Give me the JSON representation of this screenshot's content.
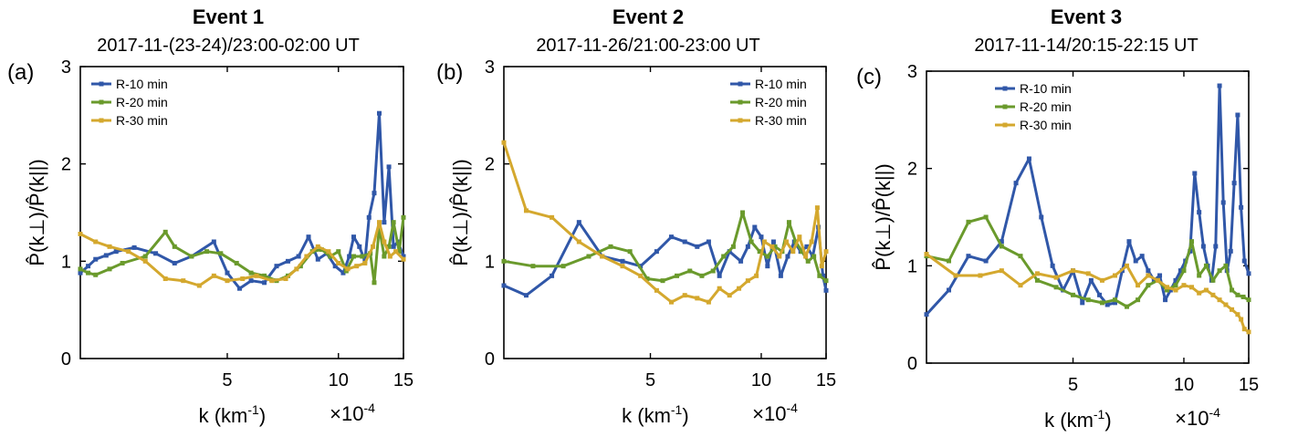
{
  "colors": {
    "R-10 min": "#3057a8",
    "R-20 min": "#6a9a2c",
    "R-30 min": "#d4a82e"
  },
  "chart_data": [
    {
      "type": "line",
      "panel_label": "(a)",
      "title": "Event 1",
      "subtitle": "2017-11-(23-24)/23:00-02:00 UT",
      "xlabel": "k (km",
      "xlabel_sup": "-1",
      "xlabel_suffix": ")",
      "x_multiplier": "×10",
      "x_multiplier_sup": "-4",
      "ylabel": "P̂(k⊥)/P̂(k||)",
      "xscale": "log",
      "xlim": [
        2,
        15
      ],
      "ylim": [
        0,
        3
      ],
      "xticks": [
        {
          "value": 5,
          "label": "5"
        },
        {
          "value": 10,
          "label": "10"
        },
        {
          "value": 15,
          "label": "15"
        }
      ],
      "yticks": [
        {
          "value": 0,
          "label": "0"
        },
        {
          "value": 1,
          "label": "1"
        },
        {
          "value": 2,
          "label": "2"
        },
        {
          "value": 3,
          "label": "3"
        }
      ],
      "legend": "upper-left",
      "grid": false,
      "series": [
        {
          "name": "R-10 min",
          "x": [
            2.0,
            2.1,
            2.2,
            2.35,
            2.5,
            2.8,
            3.2,
            3.6,
            4.0,
            4.6,
            5.0,
            5.4,
            5.8,
            6.3,
            6.8,
            7.3,
            7.8,
            8.3,
            8.8,
            9.3,
            9.8,
            10.3,
            10.7,
            11.0,
            11.4,
            11.8,
            12.1,
            12.5,
            12.9,
            13.3,
            13.7,
            14.1,
            14.5,
            15.0
          ],
          "y": [
            0.88,
            0.95,
            1.02,
            1.06,
            1.1,
            1.14,
            1.08,
            0.98,
            1.05,
            1.2,
            0.88,
            0.72,
            0.8,
            0.78,
            0.95,
            1.0,
            1.05,
            1.25,
            1.02,
            1.08,
            0.95,
            0.88,
            1.05,
            1.25,
            1.15,
            1.0,
            1.45,
            1.7,
            2.52,
            1.4,
            1.97,
            1.15,
            1.2,
            1.05
          ]
        },
        {
          "name": "R-20 min",
          "x": [
            2.0,
            2.1,
            2.2,
            2.4,
            2.6,
            3.0,
            3.4,
            3.6,
            4.0,
            4.4,
            4.8,
            5.3,
            5.8,
            6.3,
            6.8,
            7.3,
            7.9,
            8.5,
            9.0,
            9.5,
            10.0,
            10.5,
            11.0,
            11.6,
            12.2,
            12.5,
            12.9,
            13.3,
            13.7,
            14.1,
            14.6,
            15.0
          ],
          "y": [
            0.92,
            0.88,
            0.86,
            0.92,
            0.98,
            1.05,
            1.3,
            1.15,
            1.05,
            1.1,
            1.08,
            0.98,
            0.88,
            0.85,
            0.8,
            0.85,
            0.95,
            1.1,
            1.12,
            1.05,
            1.1,
            0.9,
            1.05,
            1.05,
            1.08,
            0.78,
            1.35,
            1.05,
            1.15,
            1.4,
            1.1,
            1.45
          ]
        },
        {
          "name": "R-30 min",
          "x": [
            2.0,
            2.2,
            2.4,
            2.7,
            3.0,
            3.4,
            3.8,
            4.2,
            4.6,
            5.0,
            5.5,
            6.0,
            6.6,
            7.2,
            7.7,
            8.2,
            8.8,
            9.4,
            10.0,
            10.6,
            11.2,
            11.8,
            12.4,
            12.9,
            13.3,
            13.8,
            14.3,
            15.0
          ],
          "y": [
            1.28,
            1.2,
            1.15,
            1.1,
            1.0,
            0.82,
            0.8,
            0.75,
            0.85,
            0.8,
            0.82,
            0.85,
            0.8,
            0.82,
            0.92,
            1.05,
            1.15,
            1.1,
            0.98,
            0.92,
            0.95,
            0.98,
            1.15,
            1.4,
            1.2,
            1.05,
            1.1,
            1.02
          ]
        }
      ]
    },
    {
      "type": "line",
      "panel_label": "(b)",
      "title": "Event 2",
      "subtitle": "2017-11-26/21:00-23:00 UT",
      "xlabel": "k (km",
      "xlabel_sup": "-1",
      "xlabel_suffix": ")",
      "x_multiplier": "×10",
      "x_multiplier_sup": "-4",
      "ylabel": "P̂(k⊥)/P̂(k||)",
      "xscale": "log",
      "xlim": [
        2,
        15
      ],
      "ylim": [
        0,
        3
      ],
      "xticks": [
        {
          "value": 5,
          "label": "5"
        },
        {
          "value": 10,
          "label": "10"
        },
        {
          "value": 15,
          "label": "15"
        }
      ],
      "yticks": [
        {
          "value": 0,
          "label": "0"
        },
        {
          "value": 1,
          "label": "1"
        },
        {
          "value": 2,
          "label": "2"
        },
        {
          "value": 3,
          "label": "3"
        }
      ],
      "legend": "upper-right",
      "grid": false,
      "series": [
        {
          "name": "R-10 min",
          "x": [
            2.0,
            2.3,
            2.7,
            3.2,
            3.7,
            4.2,
            4.7,
            5.2,
            5.7,
            6.2,
            6.7,
            7.2,
            7.7,
            8.2,
            8.8,
            9.2,
            9.6,
            10.0,
            10.4,
            10.8,
            11.3,
            11.8,
            12.3,
            12.8,
            13.3,
            13.8,
            14.3,
            14.7,
            15.0
          ],
          "y": [
            0.75,
            0.65,
            0.85,
            1.4,
            1.05,
            1.0,
            0.95,
            1.1,
            1.25,
            1.2,
            1.15,
            1.2,
            0.85,
            1.1,
            1.0,
            1.15,
            1.35,
            1.25,
            0.95,
            1.2,
            0.85,
            1.05,
            1.2,
            1.1,
            1.15,
            1.05,
            1.35,
            0.85,
            0.7
          ]
        },
        {
          "name": "R-20 min",
          "x": [
            2.0,
            2.4,
            2.9,
            3.4,
            3.9,
            4.4,
            4.9,
            5.4,
            5.9,
            6.4,
            6.9,
            7.4,
            7.9,
            8.4,
            8.9,
            9.4,
            9.9,
            10.4,
            10.9,
            11.4,
            11.9,
            12.4,
            12.9,
            13.4,
            13.9,
            14.4,
            15.0
          ],
          "y": [
            1.0,
            0.95,
            0.95,
            1.05,
            1.15,
            1.1,
            0.82,
            0.8,
            0.85,
            0.9,
            0.85,
            0.9,
            1.05,
            1.15,
            1.5,
            1.2,
            1.1,
            1.05,
            1.15,
            1.1,
            1.4,
            1.2,
            1.1,
            1.0,
            1.05,
            0.85,
            0.8
          ]
        },
        {
          "name": "R-30 min",
          "x": [
            2.0,
            2.3,
            2.7,
            3.2,
            3.7,
            4.2,
            4.7,
            5.2,
            5.7,
            6.2,
            6.7,
            7.2,
            7.7,
            8.2,
            8.7,
            9.2,
            9.7,
            10.2,
            10.7,
            11.2,
            11.7,
            12.2,
            12.7,
            13.2,
            13.7,
            14.2,
            14.6,
            15.0
          ],
          "y": [
            2.22,
            1.52,
            1.45,
            1.2,
            1.05,
            0.95,
            0.85,
            0.7,
            0.58,
            0.65,
            0.62,
            0.58,
            0.72,
            0.65,
            0.72,
            0.8,
            0.85,
            1.2,
            1.15,
            1.05,
            1.2,
            1.1,
            1.25,
            1.05,
            1.2,
            1.55,
            0.95,
            1.1
          ]
        }
      ]
    },
    {
      "type": "line",
      "panel_label": "(c)",
      "title": "Event 3",
      "subtitle": "2017-11-14/20:15-22:15 UT",
      "xlabel": "k (km",
      "xlabel_sup": "-1",
      "xlabel_suffix": ")",
      "x_multiplier": "×10",
      "x_multiplier_sup": "-4",
      "ylabel": "P̂(k⊥)/P̂(k||)",
      "xscale": "log",
      "xlim": [
        2,
        15
      ],
      "ylim": [
        0,
        3
      ],
      "xticks": [
        {
          "value": 5,
          "label": "5"
        },
        {
          "value": 10,
          "label": "10"
        },
        {
          "value": 15,
          "label": "15"
        }
      ],
      "yticks": [
        {
          "value": 0,
          "label": "0"
        },
        {
          "value": 1,
          "label": "1"
        },
        {
          "value": 2,
          "label": "2"
        },
        {
          "value": 3,
          "label": "3"
        }
      ],
      "legend": "upper-center",
      "grid": false,
      "series": [
        {
          "name": "R-10 min",
          "x": [
            2.0,
            2.3,
            2.6,
            2.9,
            3.2,
            3.5,
            3.8,
            4.1,
            4.4,
            4.7,
            5.0,
            5.3,
            5.6,
            5.9,
            6.2,
            6.5,
            6.8,
            7.1,
            7.4,
            7.7,
            8.0,
            8.3,
            8.6,
            8.9,
            9.2,
            9.5,
            9.8,
            10.1,
            10.4,
            10.7,
            11.0,
            11.3,
            11.6,
            11.9,
            12.2,
            12.5,
            12.8,
            13.1,
            13.4,
            13.7,
            14.0,
            14.3,
            14.6,
            15.0
          ],
          "y": [
            0.5,
            0.75,
            1.1,
            1.05,
            1.25,
            1.85,
            2.1,
            1.5,
            1.0,
            0.75,
            0.95,
            0.62,
            0.85,
            0.7,
            0.6,
            0.62,
            0.95,
            1.25,
            1.05,
            1.1,
            0.95,
            0.85,
            0.9,
            0.65,
            0.75,
            0.85,
            0.95,
            1.05,
            1.15,
            1.95,
            1.55,
            1.2,
            1.0,
            0.85,
            1.2,
            2.85,
            1.65,
            0.95,
            1.15,
            1.85,
            2.55,
            1.6,
            1.05,
            0.92
          ]
        },
        {
          "name": "R-20 min",
          "x": [
            2.0,
            2.3,
            2.6,
            2.9,
            3.2,
            3.6,
            4.0,
            4.5,
            5.0,
            5.5,
            6.0,
            6.5,
            7.0,
            7.5,
            8.0,
            8.5,
            9.0,
            9.5,
            10.0,
            10.5,
            11.0,
            11.5,
            12.0,
            12.5,
            13.0,
            13.5,
            14.0,
            14.5,
            15.0
          ],
          "y": [
            1.1,
            1.05,
            1.45,
            1.5,
            1.2,
            1.1,
            0.85,
            0.78,
            0.7,
            0.65,
            0.62,
            0.65,
            0.58,
            0.65,
            0.8,
            0.85,
            0.75,
            0.8,
            0.95,
            1.25,
            0.9,
            1.0,
            0.85,
            0.95,
            1.0,
            0.75,
            0.7,
            0.68,
            0.65
          ]
        },
        {
          "name": "R-30 min",
          "x": [
            2.0,
            2.4,
            2.8,
            3.2,
            3.6,
            4.0,
            4.5,
            5.0,
            5.5,
            6.0,
            6.5,
            7.0,
            7.5,
            8.0,
            8.5,
            9.0,
            9.5,
            10.0,
            10.5,
            11.0,
            11.5,
            12.0,
            12.5,
            13.0,
            13.5,
            14.0,
            14.3,
            14.6,
            15.0
          ],
          "y": [
            1.12,
            0.9,
            0.9,
            0.95,
            0.8,
            0.92,
            0.88,
            0.95,
            0.92,
            0.85,
            0.9,
            1.0,
            0.8,
            0.9,
            0.85,
            0.78,
            0.75,
            0.8,
            0.78,
            0.72,
            0.75,
            0.7,
            0.65,
            0.6,
            0.55,
            0.5,
            0.45,
            0.35,
            0.32
          ]
        }
      ]
    }
  ]
}
